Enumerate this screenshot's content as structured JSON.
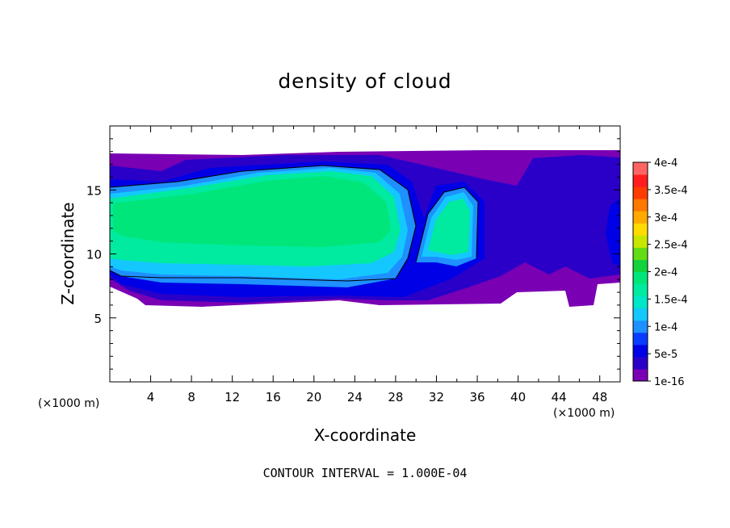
{
  "chart_data": {
    "type": "heatmap",
    "title": "density of cloud",
    "xlabel": "X-coordinate",
    "ylabel": "Z-coordinate",
    "x_unit_left": "(×1000 m)",
    "x_unit_right": "(×1000 m)",
    "footer": "CONTOUR INTERVAL = 1.000E-04",
    "xlim": [
      0,
      50
    ],
    "ylim": [
      0,
      20
    ],
    "x_ticks": [
      4,
      8,
      12,
      16,
      20,
      24,
      28,
      32,
      36,
      40,
      44,
      48
    ],
    "x_tick_labels": [
      "4",
      "8",
      "12",
      "16",
      "20",
      "24",
      "28",
      "32",
      "36",
      "40",
      "44",
      "48"
    ],
    "y_ticks": [
      5,
      10,
      15
    ],
    "y_tick_labels": [
      "5",
      "10",
      "15"
    ],
    "colorbar": {
      "levels": [
        "1e-16",
        "5e-5",
        "1e-4",
        "1.5e-4",
        "2e-4",
        "2.5e-4",
        "3e-4",
        "3.5e-4",
        "4e-4"
      ],
      "colors": [
        "#7a00b4",
        "#2a00c8",
        "#0000e6",
        "#0a3cff",
        "#1e90ff",
        "#14c8ff",
        "#00e6c8",
        "#00eaa0",
        "#00e67a",
        "#14d23c",
        "#64dc14",
        "#c8e600",
        "#ffdc00",
        "#ffaa00",
        "#ff7800",
        "#ff3c00",
        "#ff1e1e",
        "#ff6464"
      ]
    }
  }
}
